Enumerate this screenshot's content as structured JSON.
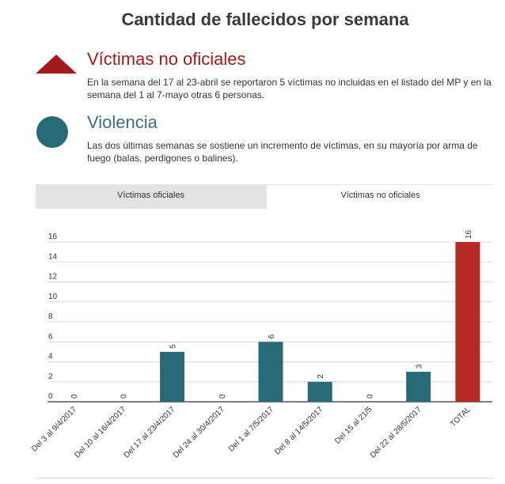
{
  "title": "Cantidad de fallecidos por semana",
  "legend": [
    {
      "icon": "triangle-icon",
      "color": "#a31a1a",
      "heading": "Víctimas no oficiales",
      "text": "En la semana del 17 al 23-abril se reportaron 5 víctimas no incluidas en el listado del MP y en la semana del 1 al 7-mayo otras 6 personas."
    },
    {
      "icon": "circle-icon",
      "color": "#286a78",
      "heading": "Violencia",
      "text": "Las dos últimas semanas se sostiene un incremento de víctimas, en su mayoría por arma de fuego (balas, perdigones o balines)."
    }
  ],
  "tabs": [
    {
      "label": "Víctimas oficiales",
      "active": false
    },
    {
      "label": "Víctimas no oficiales",
      "active": true
    }
  ],
  "chart_data": {
    "type": "bar",
    "title": "",
    "xlabel": "",
    "ylabel": "",
    "ylim": [
      0,
      16
    ],
    "yticks": [
      0,
      2,
      4,
      6,
      8,
      10,
      12,
      14,
      16
    ],
    "grid": true,
    "categories": [
      "Del 3 al 9/4/2017",
      "Del 10 al 16/4/2017",
      "Del 17 al 23/4/2017",
      "Del 24 al 30/4/2017",
      "Del 1 al 7/5/2017",
      "Del 8 al 14/5/2017",
      "Del 15 al 21/5",
      "Del 22 al 28/5/2017",
      "TOTAL"
    ],
    "values": [
      0,
      0,
      5,
      0,
      6,
      2,
      0,
      3,
      16
    ],
    "colors": [
      "#286a78",
      "#286a78",
      "#286a78",
      "#286a78",
      "#286a78",
      "#286a78",
      "#286a78",
      "#286a78",
      "#b52a25"
    ]
  }
}
